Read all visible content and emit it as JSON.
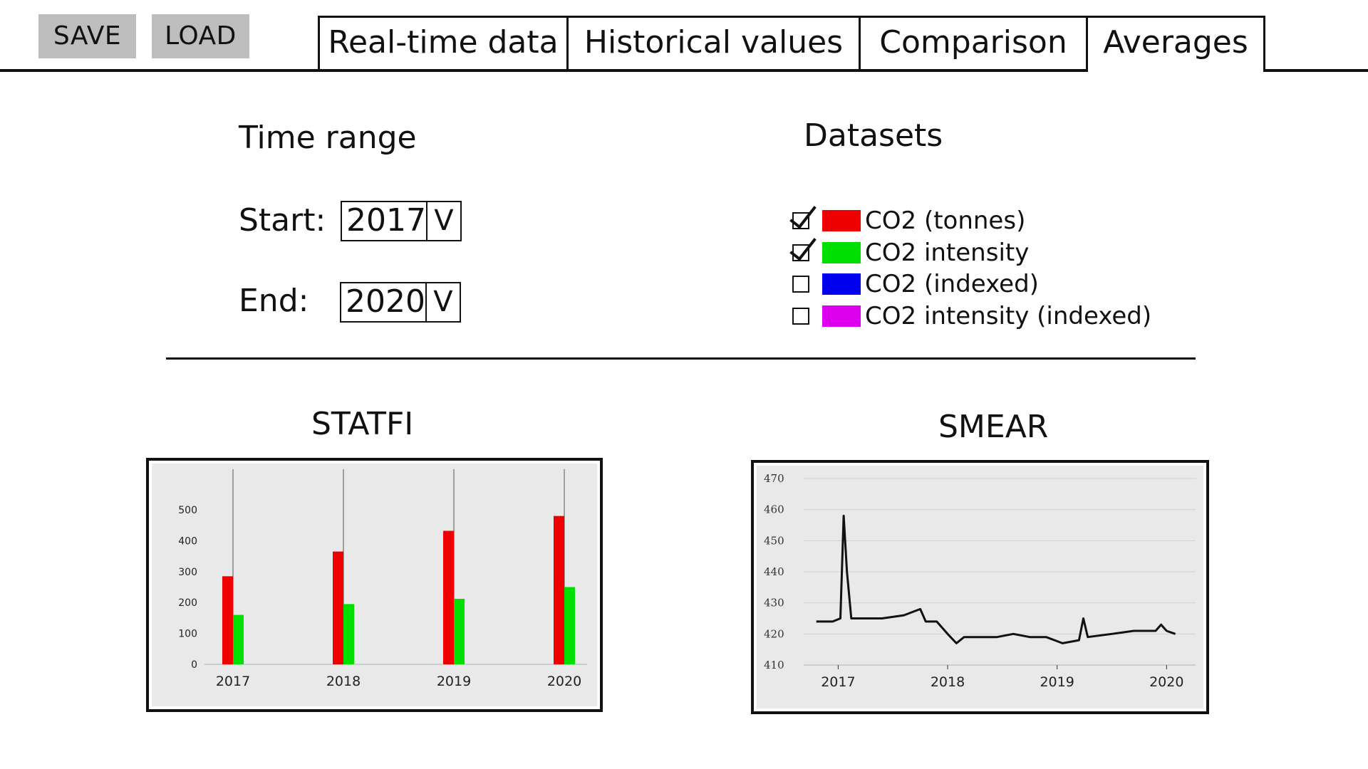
{
  "toolbar": {
    "save_label": "SAVE",
    "load_label": "LOAD"
  },
  "tabs": [
    {
      "label": "Real-time data"
    },
    {
      "label": "Historical values"
    },
    {
      "label": "Comparison"
    },
    {
      "label": "Averages",
      "active": true
    }
  ],
  "time_range": {
    "heading": "Time range",
    "start_label": "Start:",
    "start_value": "2017",
    "end_label": "End:",
    "end_value": "2020",
    "dropdown_arrow": "V"
  },
  "datasets": {
    "heading": "Datasets",
    "items": [
      {
        "label": "CO2 (tonnes)",
        "color": "#ee0000",
        "checked": true
      },
      {
        "label": "CO2 intensity",
        "color": "#00e000",
        "checked": true
      },
      {
        "label": "CO2 (indexed)",
        "color": "#0000ee",
        "checked": false
      },
      {
        "label": "CO2 intensity (indexed)",
        "color": "#dd00ee",
        "checked": false
      }
    ]
  },
  "statfi": {
    "title": "STATFI"
  },
  "smear": {
    "title": "SMEAR"
  },
  "chart_data": [
    {
      "type": "bar",
      "title": "STATFI",
      "categories": [
        "2017",
        "2018",
        "2019",
        "2020"
      ],
      "series": [
        {
          "name": "CO2 (tonnes)",
          "color": "#ee0000",
          "values": [
            285,
            365,
            432,
            480
          ]
        },
        {
          "name": "CO2 intensity",
          "color": "#00e000",
          "values": [
            160,
            195,
            212,
            250
          ]
        }
      ],
      "yticks": [
        0,
        100,
        200,
        300,
        400,
        500
      ],
      "ylim": [
        0,
        500
      ],
      "xlabel": "",
      "ylabel": "",
      "grid": false,
      "background": "#e9e9e9"
    },
    {
      "type": "line",
      "title": "SMEAR",
      "x": [
        2016.8,
        2016.95,
        2017.02,
        2017.05,
        2017.08,
        2017.12,
        2017.2,
        2017.4,
        2017.6,
        2017.75,
        2017.8,
        2017.9,
        2018.0,
        2018.08,
        2018.15,
        2018.3,
        2018.45,
        2018.6,
        2018.75,
        2018.9,
        2019.05,
        2019.2,
        2019.24,
        2019.28,
        2019.5,
        2019.7,
        2019.9,
        2019.95,
        2020.0,
        2020.08
      ],
      "y": [
        424,
        424,
        425,
        458,
        440,
        425,
        425,
        425,
        426,
        428,
        424,
        424,
        420,
        417,
        419,
        419,
        419,
        420,
        419,
        419,
        417,
        418,
        425,
        419,
        420,
        421,
        421,
        423,
        421,
        420
      ],
      "xticks": [
        "2017",
        "2018",
        "2019",
        "2020"
      ],
      "yticks": [
        410,
        420,
        430,
        440,
        450,
        460,
        470
      ],
      "xlim": [
        2016.75,
        2020.2
      ],
      "ylim": [
        410,
        470
      ],
      "xlabel": "",
      "ylabel": "",
      "grid": true,
      "background": "#e9e9e9"
    }
  ]
}
